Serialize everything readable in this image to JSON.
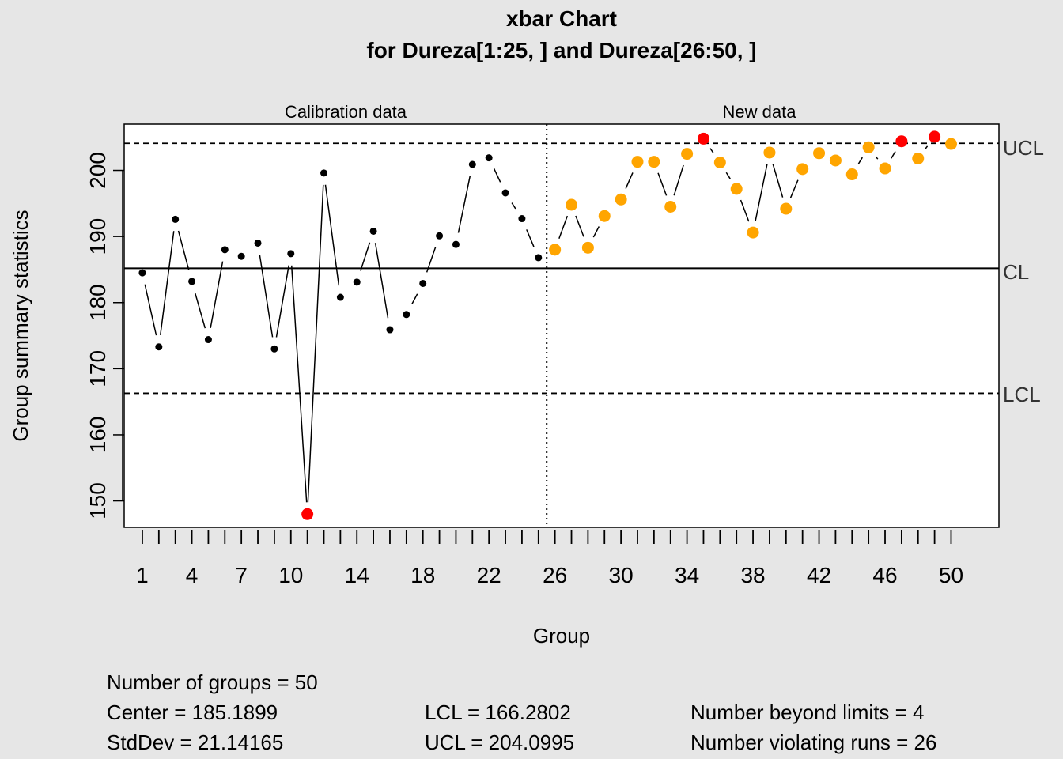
{
  "chart_data": {
    "type": "line",
    "title": "xbar Chart",
    "subtitle": "for Dureza[1:25, ] and Dureza[26:50, ]",
    "xlabel": "Group",
    "ylabel": "Group summary statistics",
    "xlim": [
      -0.1,
      52.9
    ],
    "ylim": [
      146,
      207
    ],
    "x_ticks": [
      1,
      4,
      7,
      10,
      14,
      18,
      22,
      26,
      30,
      34,
      38,
      42,
      46,
      50
    ],
    "y_ticks": [
      150,
      160,
      170,
      180,
      190,
      200
    ],
    "section_labels": {
      "calibration": "Calibration data",
      "new": "New data"
    },
    "center_line": {
      "label": "CL",
      "value": 185.1899
    },
    "ucl_line": {
      "label": "UCL",
      "value": 204.0995
    },
    "lcl_line": {
      "label": "LCL",
      "value": 166.2802
    },
    "divider_x": 25.5,
    "colors": {
      "calibration": "#000000",
      "new": "#ffa500",
      "violation": "#ff0000"
    },
    "calibration_values": [
      184.5,
      173.3,
      192.6,
      183.2,
      174.4,
      188.0,
      187.0,
      189.0,
      173.0,
      187.4,
      148.0,
      199.6,
      180.8,
      183.1,
      190.8,
      175.9,
      178.2,
      182.9,
      190.1,
      188.8,
      200.9,
      201.9,
      196.6,
      192.7,
      186.8
    ],
    "new_values": [
      188.0,
      194.8,
      188.3,
      193.1,
      195.6,
      201.3,
      201.3,
      194.5,
      202.5,
      204.8,
      201.2,
      197.2,
      190.6,
      202.7,
      194.2,
      200.2,
      202.6,
      201.5,
      199.4,
      203.5,
      200.3,
      204.4,
      201.8,
      205.1,
      204.0
    ],
    "violations": [
      11,
      35,
      47,
      49
    ]
  },
  "stats": {
    "groups": "Number of groups = 50",
    "center": "Center = 185.1899",
    "stddev": "StdDev = 21.14165",
    "lcl": "LCL = 166.2802",
    "ucl": "UCL = 204.0995",
    "beyond": "Number beyond limits = 4",
    "runs": "Number violating runs = 26"
  }
}
